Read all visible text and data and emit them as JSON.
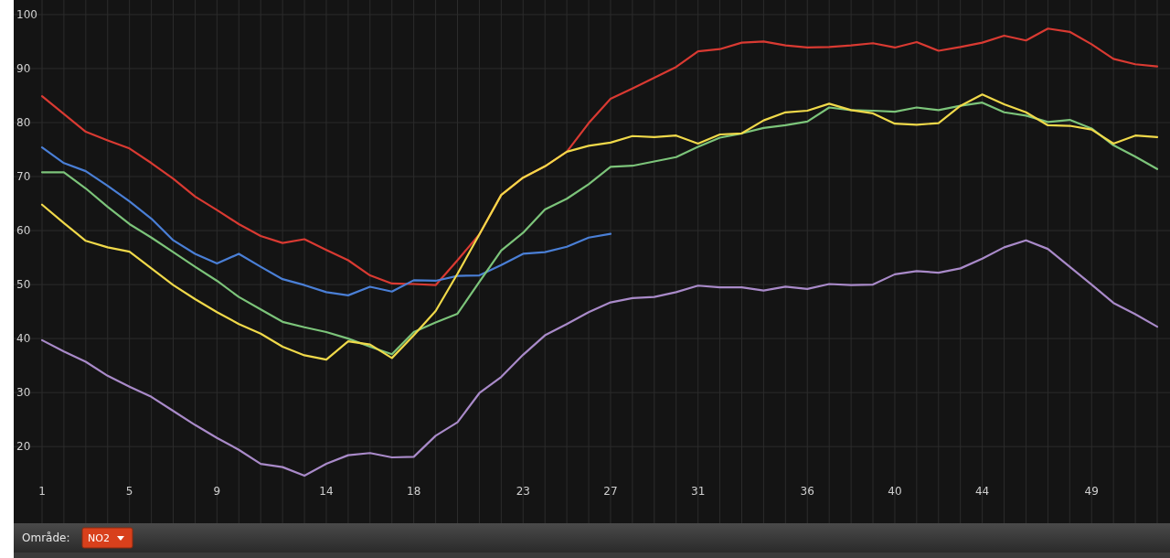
{
  "chart_data": {
    "type": "line",
    "categories": [
      "1",
      null,
      null,
      null,
      "5",
      null,
      null,
      null,
      "9",
      null,
      null,
      null,
      null,
      "14",
      null,
      null,
      null,
      "18",
      null,
      null,
      null,
      null,
      "23",
      null,
      null,
      null,
      "27",
      null,
      null,
      null,
      "31",
      null,
      null,
      null,
      null,
      "36",
      null,
      null,
      null,
      "40",
      null,
      null,
      null,
      "44",
      null,
      null,
      null,
      null,
      "49",
      null,
      null,
      null
    ],
    "series": [
      {
        "color": "#d93a32",
        "values": [
          84.9,
          81.6,
          78.3,
          76.7,
          75.2,
          72.5,
          69.6,
          66.3,
          63.8,
          61.2,
          59,
          57.7,
          58.4,
          56.4,
          54.5,
          51.7,
          50.2,
          50.1,
          49.9,
          54.5,
          59.3,
          66.6,
          69.8,
          71.9,
          74.6,
          79.9,
          84.4,
          86.3,
          88.3,
          90.3,
          93.2,
          93.6,
          94.8,
          95,
          94.3,
          93.9,
          94,
          94.3,
          94.7,
          93.9,
          94.9,
          93.3,
          94,
          94.8,
          96.1,
          95.2,
          97.4,
          96.8,
          94.5,
          91.8,
          90.8,
          90.4
        ]
      },
      {
        "color": "#4a7fd6",
        "values": [
          75.4,
          72.5,
          71,
          68.3,
          65.4,
          62.2,
          58.2,
          55.7,
          53.9,
          55.7,
          53.3,
          51,
          49.9,
          48.6,
          48,
          49.6,
          48.7,
          50.8,
          50.7,
          51.6,
          51.7,
          53.6,
          55.7,
          56,
          57,
          58.7,
          59.4,
          null,
          null,
          null,
          null,
          null,
          null,
          null,
          null,
          null,
          null,
          null,
          null,
          null,
          null,
          null,
          null,
          null,
          null,
          null,
          null,
          null,
          null,
          null,
          null,
          null
        ]
      },
      {
        "color": "#7cc47a",
        "values": [
          70.8,
          70.8,
          67.8,
          64.4,
          61.2,
          58.7,
          56,
          53.3,
          50.7,
          47.7,
          45.4,
          43.1,
          42.1,
          41.2,
          40,
          38.5,
          37.1,
          41.2,
          43,
          44.6,
          50.5,
          56.3,
          59.6,
          63.9,
          65.9,
          68.6,
          71.8,
          72,
          72.8,
          73.6,
          75.5,
          77.2,
          78,
          79,
          79.5,
          80.2,
          82.8,
          82.3,
          82.2,
          82,
          82.8,
          82.3,
          83.1,
          83.7,
          81.9,
          81.3,
          80.1,
          80.5,
          78.9,
          75.8,
          73.7,
          71.4
        ]
      },
      {
        "color": "#f0d94a",
        "values": [
          64.8,
          61.4,
          58.1,
          56.9,
          56.1,
          53,
          49.9,
          47.3,
          44.9,
          42.7,
          40.9,
          38.5,
          36.9,
          36.1,
          39.5,
          38.9,
          36.4,
          40.6,
          45.1,
          52,
          59.3,
          66.6,
          69.8,
          71.9,
          74.6,
          75.7,
          76.3,
          77.5,
          77.3,
          77.6,
          76.1,
          77.8,
          78,
          80.4,
          81.9,
          82.2,
          83.5,
          82.3,
          81.7,
          79.8,
          79.6,
          79.9,
          83.1,
          85.2,
          83.4,
          81.9,
          79.5,
          79.4,
          78.7,
          76.1,
          77.6,
          77.3
        ]
      },
      {
        "color": "#a98ac9",
        "values": [
          39.7,
          37.6,
          35.7,
          33.1,
          31.1,
          29.2,
          26.6,
          24,
          21.6,
          19.4,
          16.8,
          16.2,
          14.6,
          16.8,
          18.4,
          18.8,
          18,
          18.1,
          22,
          24.5,
          29.9,
          32.9,
          37,
          40.6,
          42.7,
          44.9,
          46.7,
          47.5,
          47.7,
          48.6,
          49.8,
          49.5,
          49.5,
          48.9,
          49.6,
          49.2,
          50.1,
          49.9,
          50,
          51.9,
          52.5,
          52.2,
          53,
          54.8,
          56.9,
          58.2,
          56.6,
          53.3,
          50,
          46.6,
          44.5,
          42.2
        ]
      }
    ],
    "ylim": [
      5.8,
      102.7
    ],
    "yticks": [
      20,
      30,
      40,
      50,
      60,
      70,
      80,
      90,
      100
    ],
    "grid": true,
    "annotations": [
      "Område:",
      "NO2"
    ]
  }
}
